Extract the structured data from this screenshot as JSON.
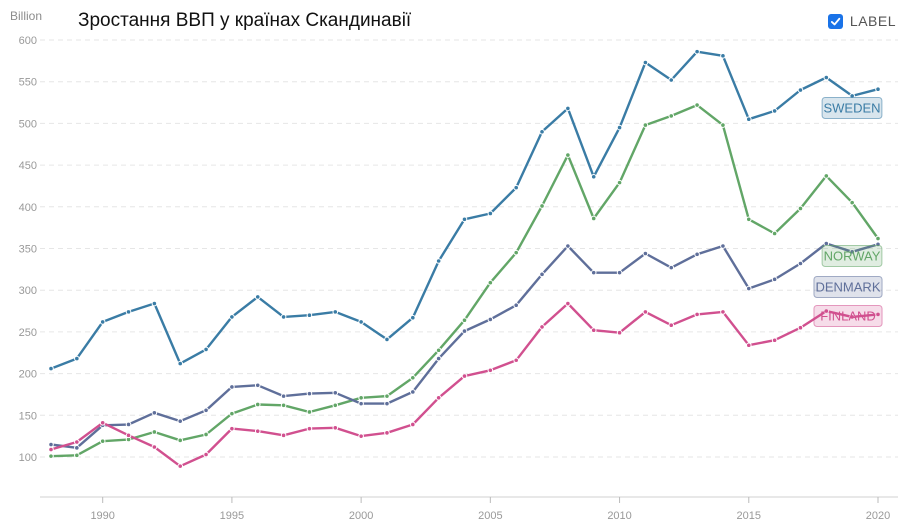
{
  "header": {
    "title": "Зростання ВВП у країнах Скандинавії",
    "unit_label": "Billion",
    "label_toggle": {
      "text": "LABEL",
      "checked": true
    }
  },
  "colors": {
    "sweden": "#3a7ca5",
    "norway": "#62a667",
    "denmark": "#5f6f9a",
    "finland": "#d1508f",
    "grid": "#e6e6e6",
    "tick": "#999999"
  },
  "chart_data": {
    "type": "line",
    "title": "Зростання ВВП у країнах Скандинавії",
    "ylabel": "Billion",
    "xlabel": "",
    "x": [
      1988,
      1989,
      1990,
      1991,
      1992,
      1993,
      1994,
      1995,
      1996,
      1997,
      1998,
      1999,
      2000,
      2001,
      2002,
      2003,
      2004,
      2005,
      2006,
      2007,
      2008,
      2009,
      2010,
      2011,
      2012,
      2013,
      2014,
      2015,
      2016,
      2017,
      2018,
      2019,
      2020
    ],
    "xlim": [
      1988,
      2020
    ],
    "ylim": [
      50,
      600
    ],
    "x_ticks": [
      1990,
      1995,
      2000,
      2005,
      2010,
      2015,
      2020
    ],
    "y_ticks": [
      100,
      150,
      200,
      250,
      300,
      350,
      400,
      450,
      500,
      550,
      600
    ],
    "grid": true,
    "series": [
      {
        "name": "Sweden",
        "label": "SWEDEN",
        "color_key": "sweden",
        "values": [
          206,
          218,
          262,
          274,
          284,
          212,
          229,
          268,
          292,
          268,
          270,
          274,
          262,
          241,
          267,
          335,
          385,
          392,
          423,
          490,
          518,
          436,
          495,
          573,
          552,
          586,
          581,
          505,
          515,
          540,
          555,
          533,
          541
        ]
      },
      {
        "name": "Norway",
        "label": "NORWAY",
        "color_key": "norway",
        "values": [
          101,
          102,
          119,
          121,
          130,
          120,
          127,
          152,
          163,
          162,
          154,
          162,
          171,
          173,
          195,
          228,
          264,
          309,
          345,
          401,
          462,
          386,
          429,
          498,
          509,
          522,
          498,
          385,
          368,
          398,
          437,
          405,
          362
        ]
      },
      {
        "name": "Denmark",
        "label": "DENMARK",
        "color_key": "denmark",
        "values": [
          115,
          111,
          138,
          139,
          153,
          143,
          156,
          184,
          186,
          173,
          176,
          177,
          164,
          164,
          178,
          218,
          251,
          265,
          282,
          319,
          353,
          321,
          321,
          344,
          327,
          343,
          353,
          302,
          313,
          332,
          356,
          346,
          355
        ]
      },
      {
        "name": "Finland",
        "label": "FINLAND",
        "color_key": "finland",
        "values": [
          109,
          118,
          141,
          126,
          112,
          89,
          103,
          134,
          131,
          126,
          134,
          135,
          125,
          129,
          139,
          171,
          197,
          204,
          216,
          256,
          284,
          252,
          249,
          274,
          258,
          271,
          274,
          234,
          240,
          255,
          275,
          268,
          271
        ]
      }
    ]
  }
}
